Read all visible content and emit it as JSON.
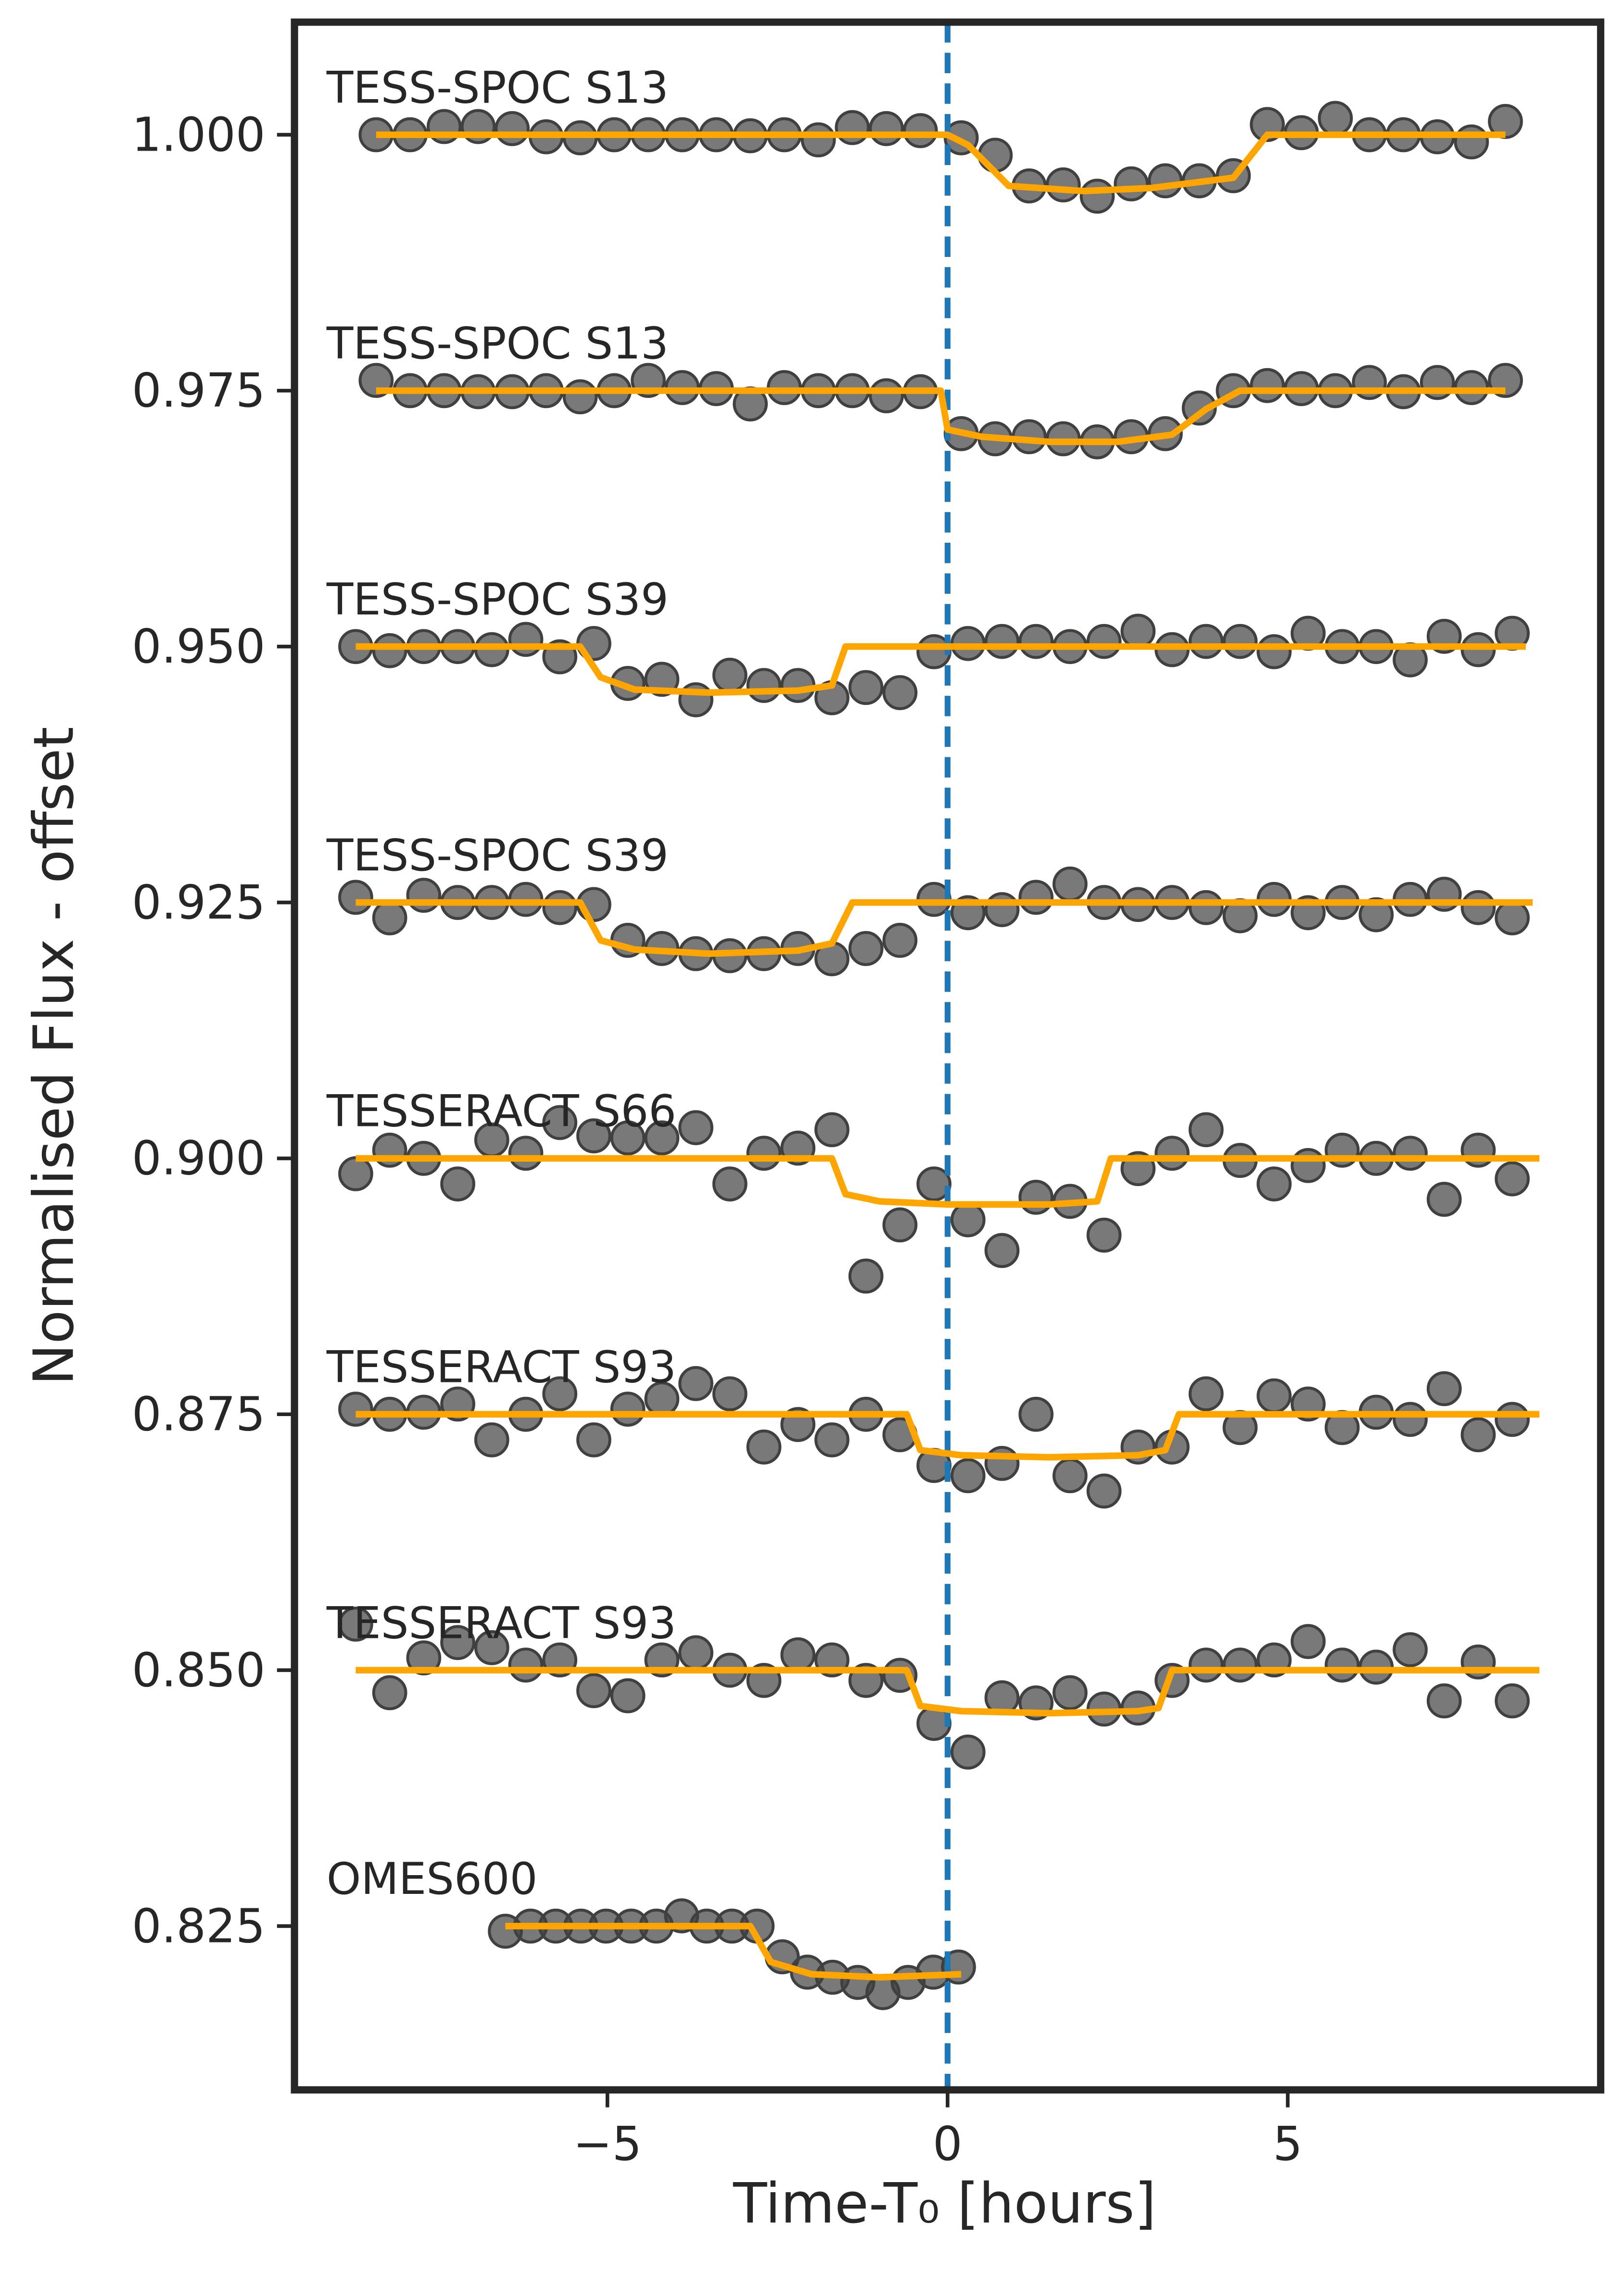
{
  "chart_data": {
    "type": "scatter",
    "xlabel": "Time-T₀ [hours]",
    "ylabel": "Normalised Flux - offset",
    "xlim": [
      -9.6,
      9.6
    ],
    "ylim": [
      0.809,
      1.011
    ],
    "xticks": [
      {
        "value": -5,
        "label": "−5"
      },
      0,
      5
    ],
    "yticks": [
      0.825,
      {
        "value": 0.85,
        "label": "0.850"
      },
      0.875,
      {
        "value": 0.9,
        "label": "0.900"
      },
      0.925,
      {
        "value": 0.95,
        "label": "0.950"
      },
      0.975,
      {
        "value": 1,
        "label": "1.000"
      }
    ],
    "vline": {
      "x": 0,
      "color": "#1f77b4",
      "dashed": true
    },
    "series": [
      {
        "name": "TESS-SPOC S13",
        "color": "#404040",
        "x": [
          -8.4,
          -7.9,
          -7.4,
          -6.9,
          -6.4,
          -5.9,
          -5.4,
          -4.9,
          -4.4,
          -3.9,
          -3.4,
          -2.9,
          -2.4,
          -1.9,
          -1.4,
          -0.9,
          -0.4,
          0.2,
          0.7,
          1.2,
          1.7,
          2.2,
          2.7,
          3.2,
          3.7,
          4.2,
          4.7,
          5.2,
          5.7,
          6.2,
          6.7,
          7.2,
          7.7,
          8.2
        ],
        "values": [
          1.0,
          1.0,
          1.0008,
          1.0008,
          1.0006,
          0.9998,
          0.9997,
          1.0,
          1.0,
          1.0,
          1.0,
          0.9999,
          1.0,
          0.9995,
          1.0007,
          1.0006,
          1.0004,
          0.9997,
          0.998,
          0.995,
          0.9951,
          0.994,
          0.9952,
          0.9955,
          0.9955,
          0.996,
          1.001,
          1.0002,
          1.0016,
          1.0,
          1.0,
          0.9998,
          0.9993,
          1.0013
        ],
        "model": {
          "color": "#ffa500",
          "x": [
            -8.4,
            0,
            0.3,
            0.6,
            0.9,
            2,
            3,
            4.2,
            4.7,
            8.2
          ],
          "values": [
            1,
            1,
            0.999,
            0.997,
            0.995,
            0.9945,
            0.9948,
            0.9958,
            1,
            1
          ]
        }
      },
      {
        "name": "TESS-SPOC S13",
        "color": "#404040",
        "x": [
          -8.4,
          -7.9,
          -7.4,
          -6.9,
          -6.4,
          -5.9,
          -5.4,
          -4.9,
          -4.4,
          -3.9,
          -3.4,
          -2.9,
          -2.4,
          -1.9,
          -1.4,
          -0.9,
          -0.4,
          0.2,
          0.7,
          1.2,
          1.7,
          2.2,
          2.7,
          3.2,
          3.7,
          4.2,
          4.7,
          5.2,
          5.7,
          6.2,
          6.7,
          7.2,
          7.7,
          8.2
        ],
        "values": [
          0.976,
          0.975,
          0.975,
          0.9749,
          0.9749,
          0.975,
          0.9744,
          0.975,
          0.976,
          0.9753,
          0.9752,
          0.9737,
          0.9753,
          0.975,
          0.975,
          0.9745,
          0.9749,
          0.9708,
          0.9703,
          0.9705,
          0.9703,
          0.97,
          0.9705,
          0.9708,
          0.9733,
          0.975,
          0.9755,
          0.9752,
          0.975,
          0.9758,
          0.9749,
          0.9758,
          0.9753,
          0.976
        ],
        "model": {
          "color": "#ffa500",
          "x": [
            -8.4,
            -0.1,
            0,
            0.5,
            1.5,
            2.5,
            3.3,
            3.8,
            4.3,
            8.2
          ],
          "values": [
            0.975,
            0.975,
            0.9712,
            0.9705,
            0.97,
            0.97,
            0.9707,
            0.9732,
            0.975,
            0.975
          ]
        }
      },
      {
        "name": "TESS-SPOC S39",
        "color": "#404040",
        "x": [
          -8.7,
          -8.2,
          -7.7,
          -7.2,
          -6.7,
          -6.2,
          -5.7,
          -5.2,
          -4.7,
          -4.2,
          -3.7,
          -3.2,
          -2.7,
          -2.2,
          -1.7,
          -1.2,
          -0.7,
          -0.2,
          0.3,
          0.8,
          1.3,
          1.8,
          2.3,
          2.8,
          3.3,
          3.8,
          4.3,
          4.8,
          5.3,
          5.8,
          6.3,
          6.8,
          7.3,
          7.8,
          8.3
        ],
        "values": [
          0.95,
          0.9496,
          0.95,
          0.95,
          0.9497,
          0.9507,
          0.949,
          0.9503,
          0.9464,
          0.9468,
          0.9448,
          0.9472,
          0.9462,
          0.9462,
          0.945,
          0.946,
          0.9455,
          0.9495,
          0.9503,
          0.9505,
          0.9505,
          0.95,
          0.9505,
          0.9515,
          0.9497,
          0.9505,
          0.9505,
          0.9495,
          0.9513,
          0.95,
          0.95,
          0.9487,
          0.951,
          0.9497,
          0.9513
        ],
        "model": {
          "color": "#ffa500",
          "x": [
            -8.7,
            -5.4,
            -5.1,
            -4.6,
            -3.5,
            -2.2,
            -1.7,
            -1.5,
            8.5
          ],
          "values": [
            0.95,
            0.95,
            0.947,
            0.9458,
            0.9455,
            0.9457,
            0.9462,
            0.95,
            0.95
          ]
        }
      },
      {
        "name": "TESS-SPOC S39",
        "color": "#404040",
        "x": [
          -8.7,
          -8.2,
          -7.7,
          -7.2,
          -6.7,
          -6.2,
          -5.7,
          -5.2,
          -4.7,
          -4.2,
          -3.7,
          -3.2,
          -2.7,
          -2.2,
          -1.7,
          -1.2,
          -0.7,
          -0.2,
          0.3,
          0.8,
          1.3,
          1.8,
          2.3,
          2.8,
          3.3,
          3.8,
          4.3,
          4.8,
          5.3,
          5.8,
          6.3,
          6.8,
          7.3,
          7.8,
          8.3
        ],
        "values": [
          0.9255,
          0.9235,
          0.9257,
          0.925,
          0.925,
          0.9253,
          0.9245,
          0.9248,
          0.9213,
          0.9205,
          0.92,
          0.9198,
          0.92,
          0.9205,
          0.9195,
          0.9205,
          0.9213,
          0.9253,
          0.924,
          0.9243,
          0.9255,
          0.9268,
          0.925,
          0.9248,
          0.925,
          0.9245,
          0.9237,
          0.9253,
          0.924,
          0.925,
          0.9238,
          0.9253,
          0.9258,
          0.9245,
          0.9235
        ],
        "model": {
          "color": "#ffa500",
          "x": [
            -8.7,
            -5.4,
            -5.1,
            -4.6,
            -3.5,
            -2.2,
            -1.7,
            -1.4,
            8.6
          ],
          "values": [
            0.925,
            0.925,
            0.9213,
            0.9204,
            0.92,
            0.9203,
            0.921,
            0.925,
            0.925
          ]
        }
      },
      {
        "name": "TESSERACT S66",
        "color": "#404040",
        "x": [
          -8.7,
          -8.2,
          -7.7,
          -7.2,
          -6.7,
          -6.2,
          -5.7,
          -5.2,
          -4.7,
          -4.2,
          -3.7,
          -3.2,
          -2.7,
          -2.2,
          -1.7,
          -1.2,
          -0.7,
          -0.2,
          0.3,
          0.8,
          1.3,
          1.8,
          2.3,
          2.8,
          3.3,
          3.8,
          4.3,
          4.8,
          5.3,
          5.8,
          6.3,
          6.8,
          7.3,
          7.8,
          8.3
        ],
        "values": [
          0.8985,
          0.9008,
          0.9,
          0.8975,
          0.9018,
          0.9005,
          0.9035,
          0.9022,
          0.902,
          0.902,
          0.903,
          0.8975,
          0.9005,
          0.901,
          0.9028,
          0.8885,
          0.8935,
          0.8975,
          0.894,
          0.891,
          0.8962,
          0.8958,
          0.8925,
          0.899,
          0.9005,
          0.9028,
          0.8998,
          0.8975,
          0.8993,
          0.9008,
          0.9,
          0.9005,
          0.896,
          0.9008,
          0.898
        ],
        "model": {
          "color": "#ffa500",
          "x": [
            -8.7,
            -1.7,
            -1.5,
            -1.0,
            0,
            1.5,
            2.2,
            2.4,
            8.7
          ],
          "values": [
            0.9,
            0.9,
            0.8965,
            0.8958,
            0.8955,
            0.8955,
            0.8958,
            0.9,
            0.9
          ]
        }
      },
      {
        "name": "TESSERACT S93",
        "color": "#404040",
        "x": [
          -8.7,
          -8.2,
          -7.7,
          -7.2,
          -6.7,
          -6.2,
          -5.7,
          -5.2,
          -4.7,
          -4.2,
          -3.7,
          -3.2,
          -2.7,
          -2.2,
          -1.7,
          -1.2,
          -0.7,
          -0.2,
          0.3,
          0.8,
          1.3,
          1.8,
          2.3,
          2.8,
          3.3,
          3.8,
          4.3,
          4.8,
          5.3,
          5.8,
          6.3,
          6.8,
          7.3,
          7.8,
          8.3
        ],
        "values": [
          0.8755,
          0.875,
          0.8752,
          0.876,
          0.8725,
          0.875,
          0.877,
          0.8725,
          0.8755,
          0.8765,
          0.878,
          0.877,
          0.8718,
          0.874,
          0.8725,
          0.875,
          0.873,
          0.87,
          0.869,
          0.8702,
          0.875,
          0.869,
          0.8675,
          0.8718,
          0.8718,
          0.877,
          0.8737,
          0.8768,
          0.876,
          0.8737,
          0.8752,
          0.8745,
          0.8775,
          0.873,
          0.8745
        ],
        "model": {
          "color": "#ffa500",
          "x": [
            -8.7,
            -0.6,
            -0.4,
            0.2,
            1.5,
            2.8,
            3.2,
            3.4,
            8.7
          ],
          "values": [
            0.875,
            0.875,
            0.8715,
            0.871,
            0.8708,
            0.871,
            0.8715,
            0.875,
            0.875
          ]
        }
      },
      {
        "name": "TESSERACT S93",
        "color": "#404040",
        "x": [
          -8.7,
          -8.2,
          -7.7,
          -7.2,
          -6.7,
          -6.2,
          -5.7,
          -5.2,
          -4.7,
          -4.2,
          -3.7,
          -3.2,
          -2.7,
          -2.2,
          -1.7,
          -1.2,
          -0.7,
          -0.2,
          0.3,
          0.8,
          1.3,
          1.8,
          2.3,
          2.8,
          3.3,
          3.8,
          4.3,
          4.8,
          5.3,
          5.8,
          6.3,
          6.8,
          7.3,
          7.8,
          8.3
        ],
        "values": [
          0.8545,
          0.8478,
          0.8512,
          0.8527,
          0.8522,
          0.8505,
          0.851,
          0.848,
          0.8475,
          0.851,
          0.8517,
          0.85,
          0.849,
          0.8515,
          0.851,
          0.849,
          0.8495,
          0.8448,
          0.842,
          0.8473,
          0.8468,
          0.8478,
          0.8462,
          0.8463,
          0.849,
          0.8505,
          0.8505,
          0.851,
          0.8528,
          0.8505,
          0.8503,
          0.852,
          0.847,
          0.8508,
          0.847
        ],
        "model": {
          "color": "#ffa500",
          "x": [
            -8.7,
            -0.6,
            -0.4,
            0.2,
            1.5,
            2.8,
            3.1,
            3.3,
            8.7
          ],
          "values": [
            0.85,
            0.85,
            0.8465,
            0.846,
            0.8458,
            0.846,
            0.8463,
            0.85,
            0.85
          ]
        }
      },
      {
        "name": "OMES600",
        "color": "#404040",
        "x": [
          -6.5,
          -6.13,
          -5.76,
          -5.39,
          -5.02,
          -4.65,
          -4.28,
          -3.91,
          -3.54,
          -3.17,
          -2.8,
          -2.43,
          -2.06,
          -1.69,
          -1.32,
          -0.95,
          -0.58,
          -0.21,
          0.16
        ],
        "values": [
          0.8245,
          0.825,
          0.825,
          0.825,
          0.825,
          0.825,
          0.825,
          0.826,
          0.825,
          0.825,
          0.825,
          0.822,
          0.8205,
          0.82,
          0.8195,
          0.8185,
          0.8195,
          0.8205,
          0.821
        ],
        "model": {
          "color": "#ffa500",
          "x": [
            -6.5,
            -2.9,
            -2.6,
            -2.0,
            -1.0,
            0.2
          ],
          "values": [
            0.825,
            0.825,
            0.8215,
            0.8203,
            0.82,
            0.8203
          ]
        }
      }
    ]
  }
}
